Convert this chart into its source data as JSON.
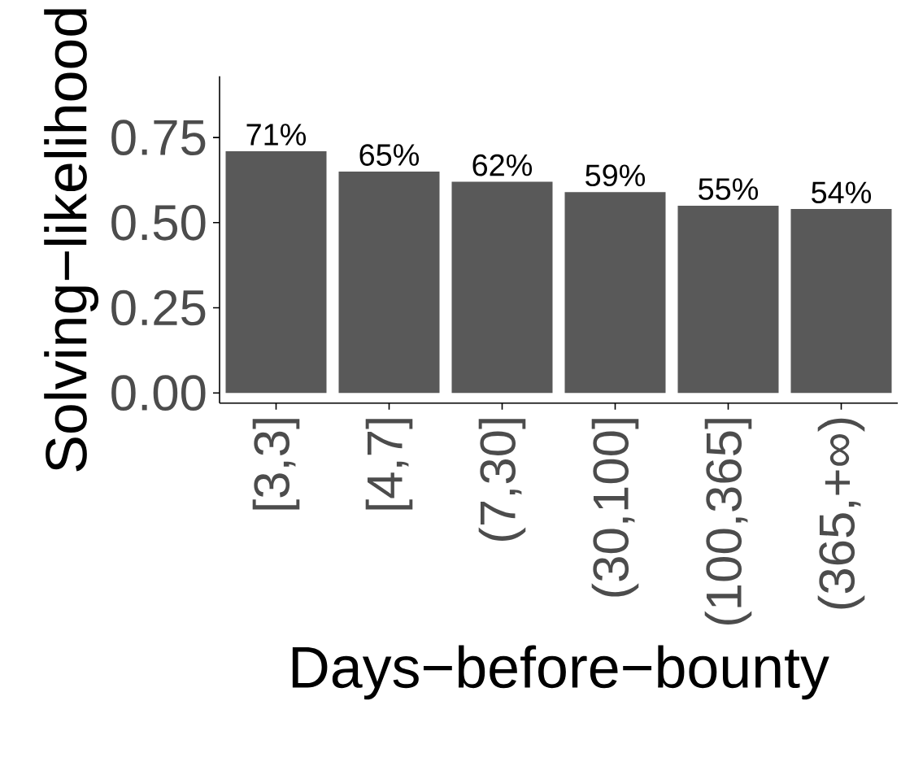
{
  "chart_data": {
    "type": "bar",
    "xlabel": "Days−before−bounty",
    "ylabel": "Solving−likelihood",
    "categories": [
      "[3,3]",
      "[4,7]",
      "(7,30]",
      "(30,100]",
      "(100,365]",
      "(365,+∞)"
    ],
    "values": [
      0.71,
      0.65,
      0.62,
      0.59,
      0.55,
      0.54
    ],
    "value_labels": [
      "71%",
      "65%",
      "62%",
      "59%",
      "55%",
      "54%"
    ],
    "color": "#595959",
    "ylim": [
      -0.03,
      0.93
    ],
    "yticks": [
      {
        "value": 0,
        "label": "0.00"
      },
      {
        "value": 0.25,
        "label": "0.25"
      },
      {
        "value": 0.5,
        "label": "0.50"
      },
      {
        "value": 0.75,
        "label": "0.75"
      }
    ],
    "grid": false
  }
}
